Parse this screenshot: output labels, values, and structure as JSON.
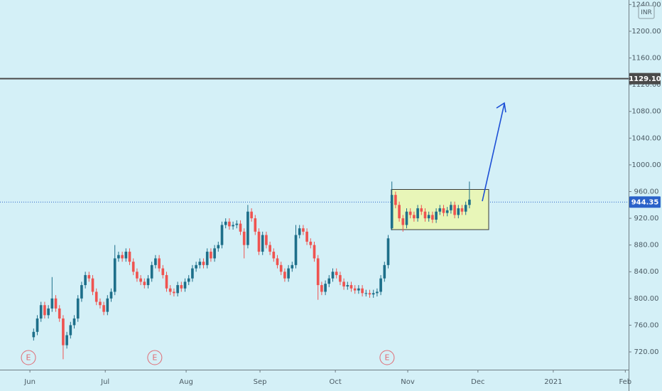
{
  "chart_data": {
    "type": "candlestick",
    "currency": "INR",
    "up_color": "#1d6f8a",
    "down_color": "#ef5350",
    "xlim": [
      -8.1,
      162.1
    ],
    "xticks": [
      {
        "value": 0,
        "label": "Jun"
      },
      {
        "value": 20.4,
        "label": "Jul"
      },
      {
        "value": 42.3,
        "label": "Aug"
      },
      {
        "value": 62.3,
        "label": "Sep"
      },
      {
        "value": 82.7,
        "label": "Oct"
      },
      {
        "value": 102.3,
        "label": "Nov"
      },
      {
        "value": 121.3,
        "label": "Dec"
      },
      {
        "value": 141.7,
        "label": "2021"
      },
      {
        "value": 161.2,
        "label": "Feb"
      }
    ],
    "ylim": [
      693.4,
      1246.8
    ],
    "yticks": [
      {
        "value": 720,
        "label": "720.00"
      },
      {
        "value": 760,
        "label": "760.00"
      },
      {
        "value": 800,
        "label": "800.00"
      },
      {
        "value": 840,
        "label": "840.00"
      },
      {
        "value": 880,
        "label": "880.00"
      },
      {
        "value": 920,
        "label": "920.00"
      },
      {
        "value": 960,
        "label": "960.00"
      },
      {
        "value": 1000,
        "label": "1000.00"
      },
      {
        "value": 1040,
        "label": "1040.00"
      },
      {
        "value": 1080,
        "label": "1080.00"
      },
      {
        "value": 1120,
        "label": "1120.00"
      },
      {
        "value": 1160,
        "label": "1160.00"
      },
      {
        "value": 1200,
        "label": "1200.00"
      },
      {
        "value": 1240,
        "label": "1240.00"
      }
    ],
    "price_lines": [
      {
        "value": 1129.1,
        "label": "1129.10",
        "color": "#4a4a4a",
        "style": "solid"
      },
      {
        "value": 944.35,
        "label": "944.35",
        "color": "#2a62c9",
        "style": "dotted"
      }
    ],
    "events": [
      {
        "x": -0.4,
        "label": "E"
      },
      {
        "x": 33.8,
        "label": "E"
      },
      {
        "x": 96.7,
        "label": "E"
      }
    ],
    "x": [
      1,
      2,
      3,
      4,
      5,
      6,
      7,
      8,
      9,
      10,
      11,
      12,
      13,
      14,
      15,
      16,
      17,
      18,
      19,
      20,
      21,
      22,
      23,
      24,
      25,
      26,
      27,
      28,
      29,
      30,
      31,
      32,
      33,
      34,
      35,
      36,
      37,
      38,
      39,
      40,
      41,
      42,
      43,
      44,
      45,
      46,
      47,
      48,
      49,
      50,
      51,
      52,
      53,
      54,
      55,
      56,
      57,
      58,
      59,
      60,
      61,
      62,
      63,
      64,
      65,
      66,
      67,
      68,
      69,
      70,
      71,
      72,
      73,
      74,
      75,
      76,
      77,
      78,
      79,
      80,
      81,
      82,
      83,
      84,
      85,
      86,
      87,
      88,
      89,
      90,
      91,
      92,
      93,
      94,
      95,
      96,
      97,
      98,
      99,
      100,
      101,
      102,
      103,
      104,
      105,
      106,
      107,
      108,
      109,
      110,
      111,
      112,
      113,
      114,
      115,
      116,
      117,
      118,
      119
    ],
    "ohlc": [
      [
        742,
        755,
        737,
        750
      ],
      [
        750,
        775,
        745,
        770
      ],
      [
        770,
        795,
        765,
        790
      ],
      [
        790,
        795,
        770,
        775
      ],
      [
        775,
        790,
        770,
        785
      ],
      [
        785,
        832,
        780,
        800
      ],
      [
        800,
        805,
        780,
        785
      ],
      [
        785,
        790,
        765,
        770
      ],
      [
        770,
        775,
        709,
        730
      ],
      [
        730,
        750,
        725,
        745
      ],
      [
        745,
        765,
        740,
        760
      ],
      [
        760,
        775,
        755,
        770
      ],
      [
        770,
        805,
        765,
        800
      ],
      [
        800,
        825,
        795,
        820
      ],
      [
        820,
        840,
        815,
        835
      ],
      [
        835,
        840,
        825,
        830
      ],
      [
        830,
        835,
        805,
        810
      ],
      [
        810,
        815,
        790,
        795
      ],
      [
        795,
        800,
        785,
        790
      ],
      [
        790,
        795,
        775,
        780
      ],
      [
        780,
        805,
        775,
        800
      ],
      [
        800,
        815,
        795,
        810
      ],
      [
        810,
        880,
        805,
        860
      ],
      [
        860,
        870,
        855,
        865
      ],
      [
        865,
        870,
        855,
        860
      ],
      [
        860,
        875,
        855,
        870
      ],
      [
        870,
        875,
        850,
        855
      ],
      [
        855,
        860,
        835,
        840
      ],
      [
        840,
        845,
        825,
        830
      ],
      [
        830,
        835,
        820,
        825
      ],
      [
        825,
        830,
        815,
        820
      ],
      [
        820,
        835,
        815,
        830
      ],
      [
        830,
        855,
        825,
        850
      ],
      [
        850,
        865,
        845,
        860
      ],
      [
        860,
        865,
        840,
        845
      ],
      [
        845,
        850,
        830,
        835
      ],
      [
        835,
        840,
        810,
        815
      ],
      [
        815,
        820,
        805,
        810
      ],
      [
        810,
        815,
        803,
        808
      ],
      [
        808,
        825,
        803,
        820
      ],
      [
        820,
        825,
        810,
        815
      ],
      [
        815,
        830,
        810,
        825
      ],
      [
        825,
        835,
        820,
        830
      ],
      [
        830,
        850,
        825,
        845
      ],
      [
        845,
        855,
        840,
        850
      ],
      [
        850,
        860,
        845,
        855
      ],
      [
        855,
        860,
        845,
        850
      ],
      [
        850,
        875,
        845,
        870
      ],
      [
        870,
        875,
        855,
        860
      ],
      [
        860,
        880,
        855,
        875
      ],
      [
        875,
        885,
        870,
        880
      ],
      [
        880,
        915,
        875,
        910
      ],
      [
        910,
        920,
        905,
        915
      ],
      [
        915,
        920,
        903,
        908
      ],
      [
        908,
        915,
        903,
        910
      ],
      [
        910,
        917,
        905,
        912
      ],
      [
        912,
        917,
        895,
        900
      ],
      [
        900,
        905,
        860,
        880
      ],
      [
        880,
        940,
        875,
        930
      ],
      [
        930,
        935,
        915,
        920
      ],
      [
        920,
        925,
        895,
        900
      ],
      [
        900,
        905,
        865,
        870
      ],
      [
        870,
        900,
        865,
        895
      ],
      [
        895,
        900,
        875,
        880
      ],
      [
        880,
        885,
        865,
        870
      ],
      [
        870,
        875,
        855,
        860
      ],
      [
        860,
        865,
        845,
        850
      ],
      [
        850,
        855,
        835,
        840
      ],
      [
        840,
        845,
        825,
        830
      ],
      [
        830,
        850,
        825,
        845
      ],
      [
        845,
        855,
        840,
        850
      ],
      [
        850,
        910,
        845,
        895
      ],
      [
        895,
        910,
        890,
        905
      ],
      [
        905,
        910,
        895,
        900
      ],
      [
        900,
        905,
        880,
        885
      ],
      [
        885,
        890,
        875,
        880
      ],
      [
        880,
        885,
        855,
        860
      ],
      [
        860,
        865,
        798,
        820
      ],
      [
        820,
        825,
        805,
        810
      ],
      [
        810,
        827,
        805,
        822
      ],
      [
        822,
        835,
        817,
        830
      ],
      [
        830,
        845,
        825,
        840
      ],
      [
        840,
        845,
        830,
        835
      ],
      [
        835,
        840,
        820,
        825
      ],
      [
        825,
        830,
        813,
        818
      ],
      [
        818,
        825,
        813,
        820
      ],
      [
        820,
        825,
        810,
        815
      ],
      [
        815,
        820,
        807,
        812
      ],
      [
        812,
        820,
        807,
        815
      ],
      [
        815,
        820,
        803,
        808
      ],
      [
        808,
        813,
        803,
        808
      ],
      [
        808,
        813,
        801,
        806
      ],
      [
        806,
        813,
        801,
        808
      ],
      [
        808,
        815,
        803,
        810
      ],
      [
        810,
        835,
        805,
        830
      ],
      [
        830,
        855,
        825,
        850
      ],
      [
        850,
        895,
        845,
        890
      ],
      [
        905,
        975,
        902,
        955
      ],
      [
        955,
        960,
        935,
        940
      ],
      [
        940,
        945,
        915,
        920
      ],
      [
        920,
        925,
        900,
        910
      ],
      [
        910,
        935,
        905,
        930
      ],
      [
        930,
        935,
        920,
        925
      ],
      [
        925,
        930,
        915,
        920
      ],
      [
        920,
        940,
        915,
        935
      ],
      [
        935,
        940,
        925,
        930
      ],
      [
        930,
        935,
        915,
        920
      ],
      [
        920,
        930,
        915,
        925
      ],
      [
        925,
        930,
        913,
        918
      ],
      [
        918,
        935,
        913,
        930
      ],
      [
        930,
        940,
        925,
        935
      ],
      [
        935,
        940,
        923,
        928
      ],
      [
        928,
        937,
        923,
        932
      ],
      [
        932,
        945,
        927,
        940
      ],
      [
        940,
        945,
        920,
        925
      ],
      [
        925,
        940,
        920,
        935
      ],
      [
        935,
        940,
        925,
        930
      ],
      [
        930,
        945,
        925,
        940
      ],
      [
        940,
        975,
        935,
        948
      ]
    ]
  }
}
